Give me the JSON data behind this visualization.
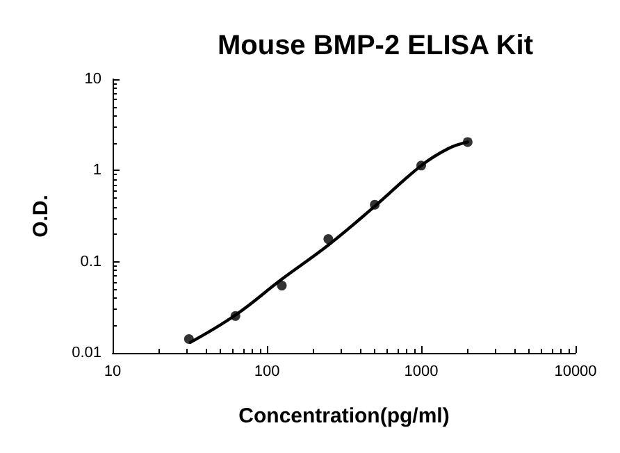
{
  "chart_data": {
    "type": "scatter",
    "title": "Mouse BMP-2 ELISA Kit",
    "xlabel": "Concentration(pg/ml)",
    "ylabel": "O.D.",
    "log": "xy",
    "xlim": [
      10,
      10000
    ],
    "xticks": [
      10,
      100,
      1000,
      10000
    ],
    "ylim": [
      0.01,
      10
    ],
    "yticks": [
      0.01,
      0.1,
      1,
      10
    ],
    "grid": false,
    "marker": "circle",
    "x": [
      31.25,
      62.5,
      125,
      250,
      500,
      1000,
      2000
    ],
    "series": [
      {
        "color": "#000000",
        "values": [
          0.0142,
          0.0254,
          0.0547,
          0.177,
          0.421,
          1.13,
          2.05
        ]
      },
      {
        "type": "line",
        "color": "#000000",
        "marker": "none",
        "x": [
          32,
          62.5,
          125,
          250,
          500,
          1000,
          1500,
          2000
        ],
        "values": [
          0.0131,
          0.026,
          0.0644,
          0.152,
          0.405,
          1.13,
          1.74,
          2.05
        ]
      }
    ]
  }
}
